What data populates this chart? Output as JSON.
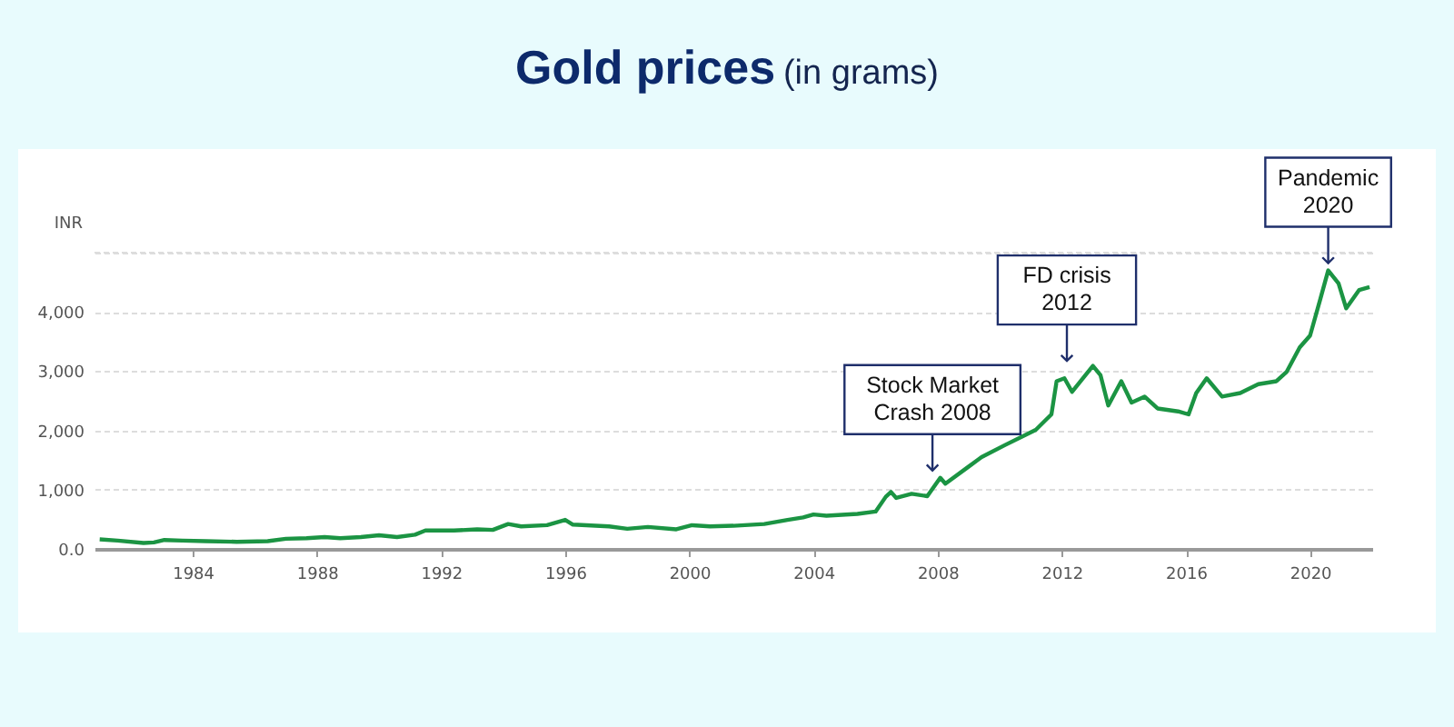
{
  "chart_data": {
    "type": "line",
    "title": "Gold prices",
    "subtitle": "(in grams)",
    "ylabel": "INR",
    "x": [
      "1981-01",
      "1981-08",
      "1982-06",
      "1982-10",
      "1983-02",
      "1983-09",
      "1984-06",
      "1985-06",
      "1986-06",
      "1987-01",
      "1987-09",
      "1988-04",
      "1988-10",
      "1989-06",
      "1990-01",
      "1990-08",
      "1991-03",
      "1991-07",
      "1992-06",
      "1993-03",
      "1993-09",
      "1994-03",
      "1994-08",
      "1995-06",
      "1996-01",
      "1996-04",
      "1997-06",
      "1998-01",
      "1998-09",
      "1999-08",
      "2000-02",
      "2000-09",
      "2001-06",
      "2002-06",
      "2003-03",
      "2003-09",
      "2004-01",
      "2004-06",
      "2005-06",
      "2006-01",
      "2006-05",
      "2006-07",
      "2006-09",
      "2007-03",
      "2007-09",
      "2008-02",
      "2008-04",
      "2009-01",
      "2009-06",
      "2010-03",
      "2011-03",
      "2011-09",
      "2011-11",
      "2012-02",
      "2012-05",
      "2013-01",
      "2013-04",
      "2013-07",
      "2013-12",
      "2014-04",
      "2014-09",
      "2015-02",
      "2015-10",
      "2016-02",
      "2016-05",
      "2016-09",
      "2017-03",
      "2017-10",
      "2018-05",
      "2018-12",
      "2019-04",
      "2019-09",
      "2020-01",
      "2020-05",
      "2020-08",
      "2020-12",
      "2021-03",
      "2021-08",
      "2021-12"
    ],
    "series": [
      {
        "color": "#1b9443",
        "values": [
          160,
          140,
          100,
          110,
          150,
          140,
          130,
          120,
          130,
          170,
          180,
          200,
          180,
          200,
          230,
          200,
          240,
          310,
          310,
          330,
          320,
          420,
          380,
          400,
          490,
          410,
          380,
          340,
          370,
          330,
          400,
          380,
          390,
          420,
          490,
          530,
          580,
          560,
          590,
          630,
          880,
          960,
          860,
          930,
          890,
          1200,
          1100,
          1390,
          1550,
          1750,
          2010,
          2270,
          2830,
          2880,
          2650,
          3090,
          2930,
          2420,
          2830,
          2470,
          2570,
          2370,
          2320,
          2270,
          2630,
          2880,
          2570,
          2630,
          2780,
          2830,
          2990,
          3400,
          3600,
          4220,
          4700,
          4480,
          4060,
          4370,
          4420
        ]
      }
    ],
    "xlim": [
      "1980-11",
      "2022-01"
    ],
    "xticks": [
      "1984",
      "1988",
      "1992",
      "1996",
      "2000",
      "2004",
      "2008",
      "2012",
      "2016",
      "2020"
    ],
    "ylim": [
      0,
      5000
    ],
    "yticks": [
      {
        "value": 0,
        "label": "0.0"
      },
      {
        "value": 1000,
        "label": "1,000"
      },
      {
        "value": 2000,
        "label": "2,000"
      },
      {
        "value": 3000,
        "label": "3,000"
      },
      {
        "value": 4000,
        "label": "4,000"
      },
      {
        "value": 5000,
        "label": null
      }
    ],
    "grid": "y",
    "annotations": [
      {
        "text": "Stock Market\nCrash 2008",
        "x": "2007-11",
        "y": 1200
      },
      {
        "text": "FD crisis\n2012",
        "x": "2012-03",
        "y": 3050
      },
      {
        "text": "Pandemic\n2020",
        "x": "2020-08",
        "y": 4700
      }
    ]
  }
}
